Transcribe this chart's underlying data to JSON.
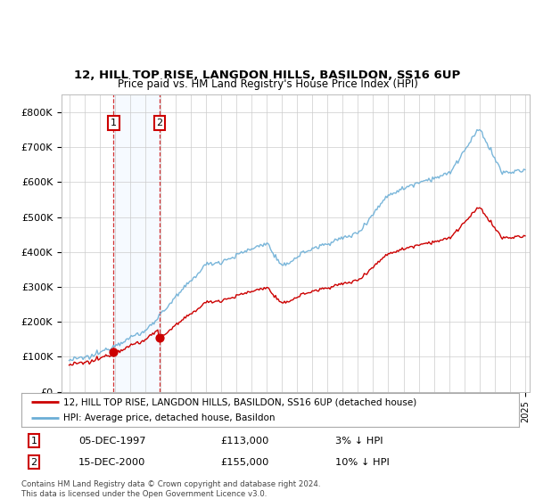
{
  "title": "12, HILL TOP RISE, LANGDON HILLS, BASILDON, SS16 6UP",
  "subtitle": "Price paid vs. HM Land Registry's House Price Index (HPI)",
  "legend_line1": "12, HILL TOP RISE, LANGDON HILLS, BASILDON, SS16 6UP (detached house)",
  "legend_line2": "HPI: Average price, detached house, Basildon",
  "transaction1_label": "1",
  "transaction1_date": "05-DEC-1997",
  "transaction1_price": "£113,000",
  "transaction1_hpi": "3% ↓ HPI",
  "transaction2_label": "2",
  "transaction2_date": "15-DEC-2000",
  "transaction2_price": "£155,000",
  "transaction2_hpi": "10% ↓ HPI",
  "footnote": "Contains HM Land Registry data © Crown copyright and database right 2024.\nThis data is licensed under the Open Government Licence v3.0.",
  "ylim": [
    0,
    850000
  ],
  "yticks": [
    0,
    100000,
    200000,
    300000,
    400000,
    500000,
    600000,
    700000,
    800000
  ],
  "ytick_labels": [
    "£0",
    "£100K",
    "£200K",
    "£300K",
    "£400K",
    "£500K",
    "£600K",
    "£700K",
    "£800K"
  ],
  "hpi_color": "#6baed6",
  "price_color": "#cc0000",
  "dashed_color": "#cc0000",
  "shade_color": "#ddeeff",
  "bg_color": "#ffffff",
  "grid_color": "#cccccc",
  "transaction1_x": 1997.917,
  "transaction2_x": 2000.958,
  "t1_price": 113000,
  "t2_price": 155000
}
